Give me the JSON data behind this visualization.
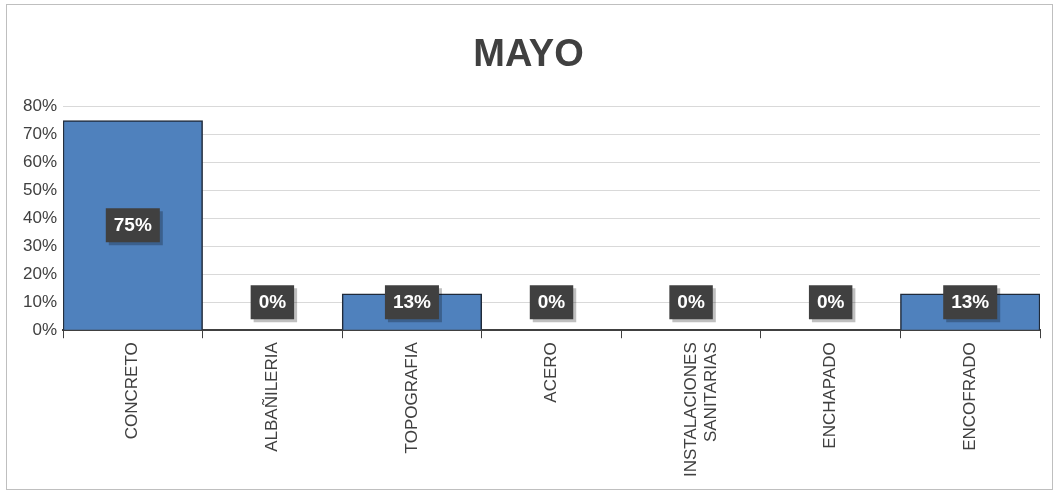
{
  "chart_data": {
    "type": "bar",
    "title": "MAYO",
    "categories": [
      "CONCRETO",
      "ALBAÑILERIA",
      "TOPOGRAFIA",
      "ACERO",
      "INSTALACIONES SANITARIAS",
      "ENCHAPADO",
      "ENCOFRADO"
    ],
    "values": [
      75,
      0,
      13,
      0,
      0,
      0,
      13
    ],
    "color": "#4f81bd",
    "ylim": [
      0,
      80
    ],
    "yticks": [
      {
        "value": 0,
        "label": "0%"
      },
      {
        "value": 10,
        "label": "10%"
      },
      {
        "value": 20,
        "label": "20%"
      },
      {
        "value": 30,
        "label": "30%"
      },
      {
        "value": 40,
        "label": "40%"
      },
      {
        "value": 50,
        "label": "50%"
      },
      {
        "value": 60,
        "label": "60%"
      },
      {
        "value": 70,
        "label": "70%"
      },
      {
        "value": 80,
        "label": "80%"
      }
    ],
    "grid": "y",
    "legend": false,
    "value_labels": [
      "75%",
      "0%",
      "13%",
      "0%",
      "0%",
      "0%",
      "13%"
    ]
  }
}
